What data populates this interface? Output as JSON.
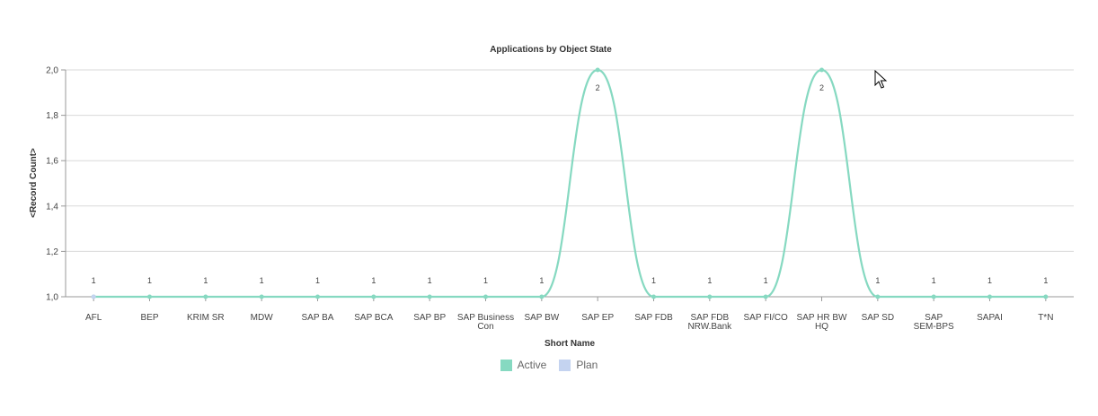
{
  "chart_data": {
    "type": "line",
    "title": "Applications by Object State",
    "xlabel": "Short Name",
    "ylabel": "<Record Count>",
    "ylim": [
      1.0,
      2.0
    ],
    "yticks": [
      "1,0",
      "1,2",
      "1,4",
      "1,6",
      "1,8",
      "2,0"
    ],
    "categories": [
      "AFL",
      "BEP",
      "KRIM SR",
      "MDW",
      "SAP BA",
      "SAP BCA",
      "SAP BP",
      "SAP Business Con",
      "SAP BW",
      "SAP EP",
      "SAP FDB",
      "SAP FDB NRW.Bank",
      "SAP FI/CO",
      "SAP HR BW HQ",
      "SAP SD",
      "SAP SEM-BPS",
      "SAPAI",
      "T*N"
    ],
    "category_lines": [
      [
        "AFL"
      ],
      [
        "BEP"
      ],
      [
        "KRIM SR"
      ],
      [
        "MDW"
      ],
      [
        "SAP BA"
      ],
      [
        "SAP BCA"
      ],
      [
        "SAP BP"
      ],
      [
        "SAP Business",
        "Con"
      ],
      [
        "SAP BW"
      ],
      [
        "SAP EP"
      ],
      [
        "SAP FDB"
      ],
      [
        "SAP FDB",
        "NRW.Bank"
      ],
      [
        "SAP FI/CO"
      ],
      [
        "SAP HR BW",
        "HQ"
      ],
      [
        "SAP SD"
      ],
      [
        "SAP",
        "SEM-BPS"
      ],
      [
        "SAPAI"
      ],
      [
        "T*N"
      ]
    ],
    "series": [
      {
        "name": "Active",
        "color": "#86d9c1",
        "values": [
          1,
          1,
          1,
          1,
          1,
          1,
          1,
          1,
          1,
          2,
          1,
          1,
          1,
          2,
          1,
          1,
          1,
          1
        ]
      },
      {
        "name": "Plan",
        "color": "#c4d3f0",
        "values": [
          1,
          null,
          null,
          null,
          null,
          null,
          null,
          null,
          null,
          null,
          null,
          null,
          null,
          null,
          null,
          null,
          null,
          null
        ]
      }
    ],
    "data_labels": [
      "1",
      "1",
      "1",
      "1",
      "1",
      "1",
      "1",
      "1",
      "1",
      "2",
      "1",
      "1",
      "1",
      "2",
      "1",
      "1",
      "1",
      "1"
    ],
    "grid": true,
    "legend_position": "bottom-center"
  }
}
